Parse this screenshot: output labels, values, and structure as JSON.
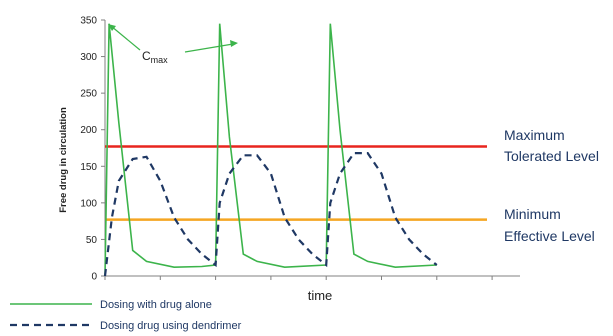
{
  "chart_data": {
    "type": "line",
    "xlabel": "time",
    "ylabel": "Free drug in circulation",
    "ylim": [
      0,
      350
    ],
    "yticks": [
      0,
      50,
      100,
      150,
      200,
      250,
      300,
      350
    ],
    "xlim": [
      0,
      30
    ],
    "grid": false,
    "legend_position": "bottom-left",
    "series": [
      {
        "name": "Dosing with drug alone",
        "color": "#3cb44b",
        "style": "solid",
        "x": [
          0,
          0.3,
          1.0,
          2.0,
          3.0,
          5.0,
          7.0,
          8.0,
          8.3,
          9.0,
          10.0,
          11.0,
          13.0,
          16.0,
          16.3,
          17.0,
          18.0,
          19.0,
          21.0,
          24.0
        ],
        "y": [
          0,
          345,
          210,
          35,
          20,
          12,
          13,
          15,
          345,
          190,
          30,
          20,
          12,
          15,
          345,
          200,
          30,
          20,
          12,
          15
        ]
      },
      {
        "name": "Dosing drug using dendrimer",
        "color": "#1f3864",
        "style": "dashed",
        "x": [
          0,
          0.5,
          1.0,
          2.0,
          3.0,
          4.0,
          5.0,
          6.0,
          7.0,
          8.0,
          8.3,
          9.0,
          10.0,
          11.0,
          12.0,
          13.0,
          14.0,
          15.0,
          16.0,
          16.3,
          17.0,
          18.0,
          19.0,
          20.0,
          21.0,
          22.0,
          23.0,
          24.0
        ],
        "y": [
          0,
          80,
          130,
          160,
          163,
          130,
          80,
          50,
          30,
          15,
          100,
          140,
          165,
          165,
          140,
          80,
          50,
          30,
          15,
          100,
          140,
          168,
          168,
          140,
          80,
          50,
          30,
          15
        ]
      }
    ],
    "reference_lines": [
      {
        "y": 177,
        "color": "#e8251e",
        "label": "Maximum Tolerated Level"
      },
      {
        "y": 77,
        "color": "#f5a623",
        "label": "Minimum Effective Level"
      }
    ],
    "annotations": [
      {
        "text": "C",
        "subscript": "max"
      }
    ]
  }
}
